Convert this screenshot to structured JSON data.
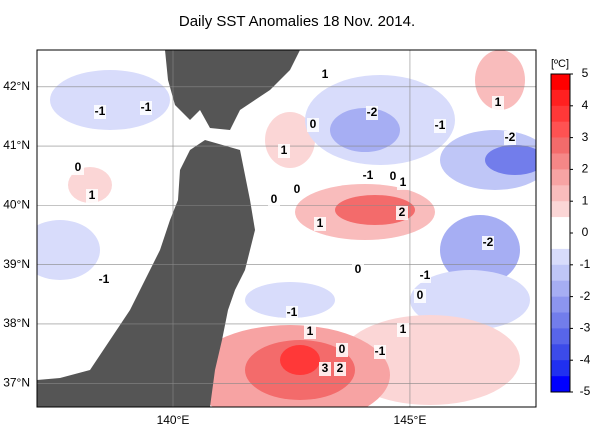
{
  "title": "Daily SST Anomalies 18 Nov. 2014.",
  "map": {
    "xlim": [
      137.13,
      147.66
    ],
    "ylim": [
      36.6,
      42.62
    ],
    "xticks": [
      {
        "value": 140,
        "label": "140°E"
      },
      {
        "value": 145,
        "label": "145°E"
      }
    ],
    "yticks": [
      {
        "value": 42,
        "label": "42°N"
      },
      {
        "value": 41,
        "label": "41°N"
      },
      {
        "value": 40,
        "label": "40°N"
      },
      {
        "value": 39,
        "label": "39°N"
      },
      {
        "value": 38,
        "label": "38°N"
      },
      {
        "value": 37,
        "label": "37°N"
      }
    ],
    "contour_labels": [
      "1",
      "-1",
      "-1",
      "-2",
      "-1",
      "1",
      "-2",
      "1",
      "0",
      "0",
      "1",
      "0",
      "0",
      "-1",
      "0",
      "1",
      "2",
      "1",
      "-2",
      "0",
      "-1",
      "-1",
      "0",
      "-1",
      "1",
      "1",
      "0",
      "-1",
      "3",
      "2"
    ]
  },
  "colorbar": {
    "unit": "[ºC]",
    "clim": [
      -5,
      5
    ],
    "ticks": [
      5,
      4,
      3,
      2,
      1,
      0,
      -1,
      -2,
      -3,
      -4,
      -5
    ],
    "colors": [
      "#ff0000",
      "#ff2020",
      "#ff3838",
      "#ff5252",
      "#f36b6b",
      "#f58787",
      "#f7a3a3",
      "#f9bcbc",
      "#fbd6d6",
      "#ffffff",
      "#ffffff",
      "#d8dcfb",
      "#bfc6f7",
      "#a6aef3",
      "#8c95ef",
      "#727deb",
      "#5865ea",
      "#3c4be9",
      "#2030f0",
      "#0000ff"
    ]
  }
}
